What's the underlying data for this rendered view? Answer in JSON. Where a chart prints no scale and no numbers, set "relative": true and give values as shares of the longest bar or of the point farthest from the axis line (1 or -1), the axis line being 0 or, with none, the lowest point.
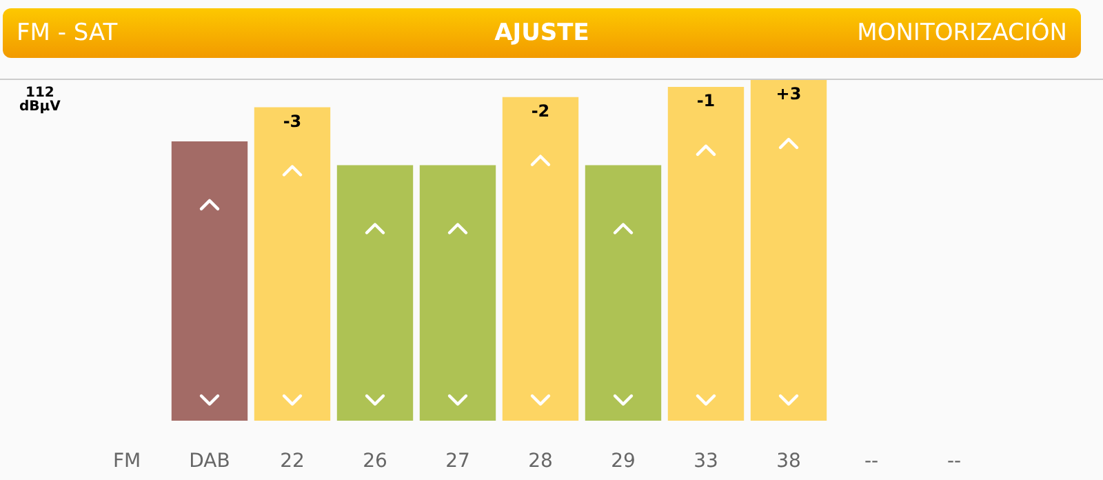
{
  "chart_data": {
    "type": "bar",
    "title": "AJUSTE",
    "relative": true,
    "annotations": [
      "FM - SAT",
      "MONITORIZACIÓN",
      "112\ndBµV",
      {
        "text": "-3",
        "x": "22",
        "y": 0.92
      },
      {
        "text": "-2",
        "x": "28",
        "y": 0.95
      },
      {
        "text": "-1",
        "x": "33",
        "y": 0.98
      },
      {
        "text": "+3",
        "x": "38",
        "y": 1
      }
    ],
    "categories": [
      "FM",
      "DAB",
      "22",
      "26",
      "27",
      "28",
      "29",
      "33",
      "38",
      "--",
      "--"
    ],
    "values": [
      null,
      0.82,
      0.92,
      0.75,
      0.75,
      0.95,
      0.75,
      0.98,
      1,
      null,
      null
    ],
    "colors": [
      null,
      "#a36b66",
      "#fdd563",
      "#aec254",
      "#aec254",
      "#fdd563",
      "#aec254",
      "#fdd563",
      "#fdd563",
      null,
      null
    ],
    "grid": false
  }
}
